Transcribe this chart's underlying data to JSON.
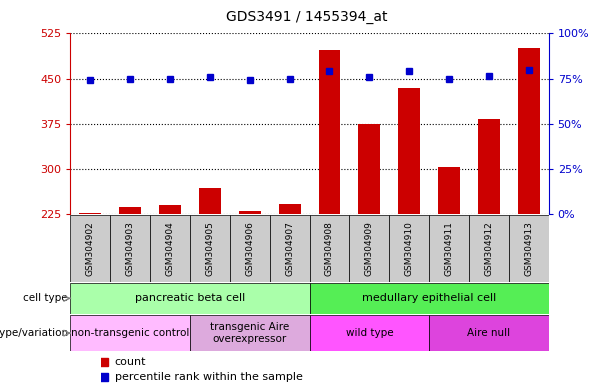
{
  "title": "GDS3491 / 1455394_at",
  "samples": [
    "GSM304902",
    "GSM304903",
    "GSM304904",
    "GSM304905",
    "GSM304906",
    "GSM304907",
    "GSM304908",
    "GSM304909",
    "GSM304910",
    "GSM304911",
    "GSM304912",
    "GSM304913"
  ],
  "counts": [
    227,
    237,
    239,
    268,
    229,
    241,
    498,
    374,
    435,
    303,
    383,
    500
  ],
  "percentile_left_vals": [
    448,
    450,
    449,
    452,
    447,
    449,
    462,
    453,
    462,
    450,
    455,
    464
  ],
  "ylim_left": [
    225,
    525
  ],
  "ylim_right": [
    0,
    100
  ],
  "yticks_left": [
    225,
    300,
    375,
    450,
    525
  ],
  "yticks_right": [
    0,
    25,
    50,
    75,
    100
  ],
  "bar_color": "#cc0000",
  "dot_color": "#0000cc",
  "cell_type_groups": [
    {
      "label": "pancreatic beta cell",
      "start": 0,
      "end": 6,
      "color": "#aaffaa"
    },
    {
      "label": "medullary epithelial cell",
      "start": 6,
      "end": 12,
      "color": "#55ee55"
    }
  ],
  "genotype_groups": [
    {
      "label": "non-transgenic control",
      "start": 0,
      "end": 3,
      "color": "#ffbbff"
    },
    {
      "label": "transgenic Aire\noverexpressor",
      "start": 3,
      "end": 6,
      "color": "#ddaadd"
    },
    {
      "label": "wild type",
      "start": 6,
      "end": 9,
      "color": "#ff55ff"
    },
    {
      "label": "Aire null",
      "start": 9,
      "end": 12,
      "color": "#dd44dd"
    }
  ],
  "tick_label_color_left": "#cc0000",
  "tick_label_color_right": "#0000cc",
  "sample_box_color": "#cccccc"
}
